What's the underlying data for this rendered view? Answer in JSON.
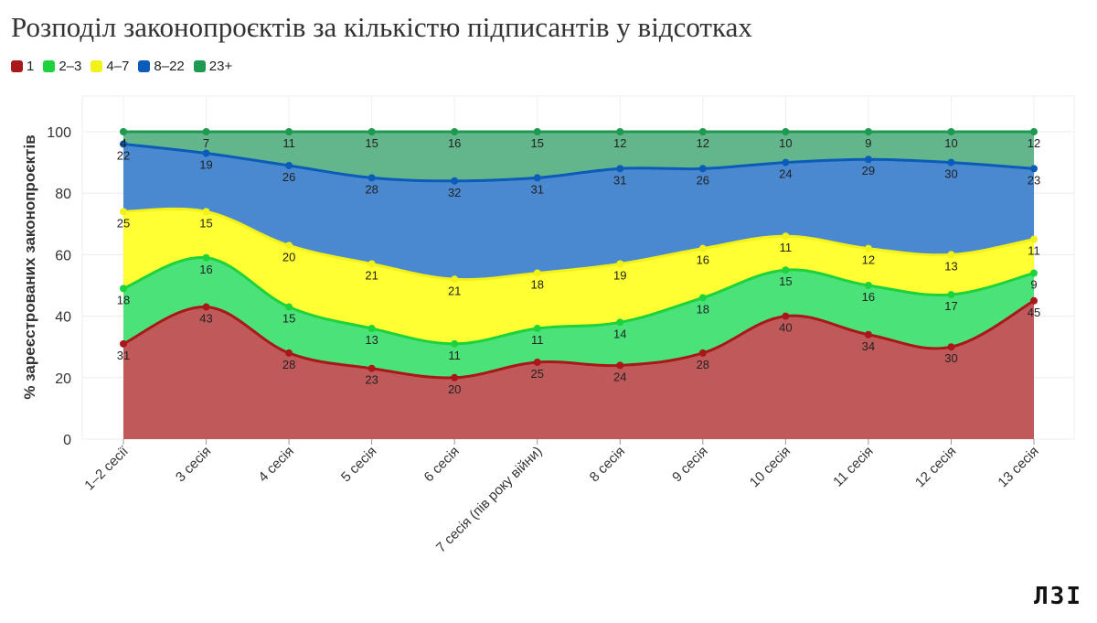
{
  "chart_data": {
    "type": "area",
    "stacked": true,
    "title": "Розподіл законопроєктів за кількістю підписантів у відсотках",
    "ylabel": "% зареєстрованих законопроєктів",
    "xlabel": "",
    "ylim": [
      0,
      100
    ],
    "yticks": [
      0,
      20,
      40,
      60,
      80,
      100
    ],
    "grid": true,
    "legend_position": "top-left",
    "categories": [
      "1–2 сесії",
      "3 сесія",
      "4 сесія",
      "5 сесія",
      "6 сесія",
      "7 сесія (пів року війни)",
      "8 сесія",
      "9 сесія",
      "10 сесія",
      "11 сесія",
      "12 сесія",
      "13 сесія"
    ],
    "series": [
      {
        "name": "1",
        "line": "#a8181a",
        "fill": "#c05a5a",
        "values": [
          31,
          43,
          28,
          23,
          20,
          25,
          24,
          28,
          40,
          34,
          30,
          45
        ]
      },
      {
        "name": "2–3",
        "line": "#1ed23c",
        "fill": "#4be27a",
        "values": [
          18,
          16,
          15,
          13,
          11,
          11,
          14,
          18,
          15,
          16,
          17,
          9
        ]
      },
      {
        "name": "4–7",
        "line": "#f2f21a",
        "fill": "#ffff33",
        "values": [
          25,
          15,
          20,
          21,
          21,
          18,
          19,
          16,
          11,
          12,
          13,
          11
        ]
      },
      {
        "name": "8–22",
        "line": "#0a5cb8",
        "fill": "#4a88d0",
        "values": [
          22,
          19,
          26,
          28,
          32,
          31,
          31,
          26,
          24,
          29,
          30,
          23
        ]
      },
      {
        "name": "23+",
        "line": "#1e9a50",
        "fill": "#63b58b",
        "values": [
          4,
          7,
          11,
          15,
          16,
          15,
          12,
          12,
          10,
          9,
          10,
          12
        ]
      }
    ]
  },
  "logo": "ЛЗІ"
}
